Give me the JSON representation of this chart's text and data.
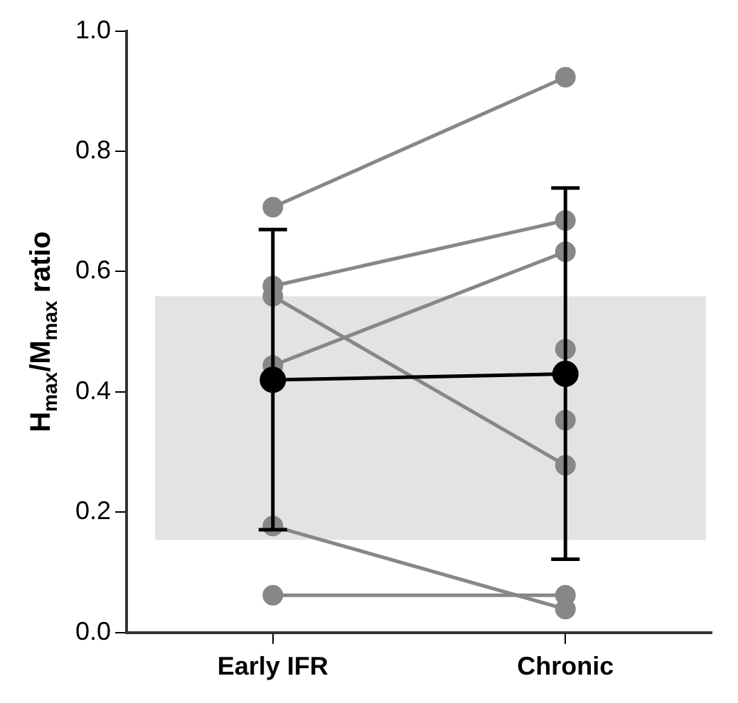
{
  "chart_data": {
    "type": "line",
    "ylabel": "H$_{max}$/M$_{max}$ ratio",
    "categories": [
      "Early IFR",
      "Chronic"
    ],
    "series": [
      {
        "color": "#878787",
        "values": [
          0.707,
          0.923
        ]
      },
      {
        "color": "#878787",
        "values": [
          0.576,
          0.685
        ]
      },
      {
        "color": "#878787",
        "values": [
          0.559,
          0.278
        ]
      },
      {
        "color": "#878787",
        "values": [
          0.444,
          0.633
        ]
      },
      {
        "color": "#878787",
        "values": [
          0.177,
          0.039
        ]
      },
      {
        "color": "#878787",
        "values": [
          0.062,
          0.062
        ]
      },
      {
        "color": "#878787",
        "values": [
          null,
          0.471
        ]
      },
      {
        "color": "#878787",
        "values": [
          null,
          0.353
        ]
      },
      {
        "color": "#000000",
        "values": [
          0.42,
          0.43
        ],
        "errors": [
          [
            0.171,
            0.67
          ],
          [
            0.122,
            0.739
          ]
        ]
      }
    ],
    "ylim": [
      0,
      1
    ],
    "yticks": [
      {
        "value": 0,
        "label": "0.0"
      },
      0.2,
      0.4,
      0.6,
      0.8,
      {
        "value": 1,
        "label": "1.0"
      }
    ],
    "bands": [
      {
        "axis": "y",
        "from": 0.154,
        "to": 0.559,
        "color": "#e3e3e3"
      }
    ],
    "grid": false,
    "legend": false,
    "marker": "circle",
    "line_style": "solid"
  }
}
